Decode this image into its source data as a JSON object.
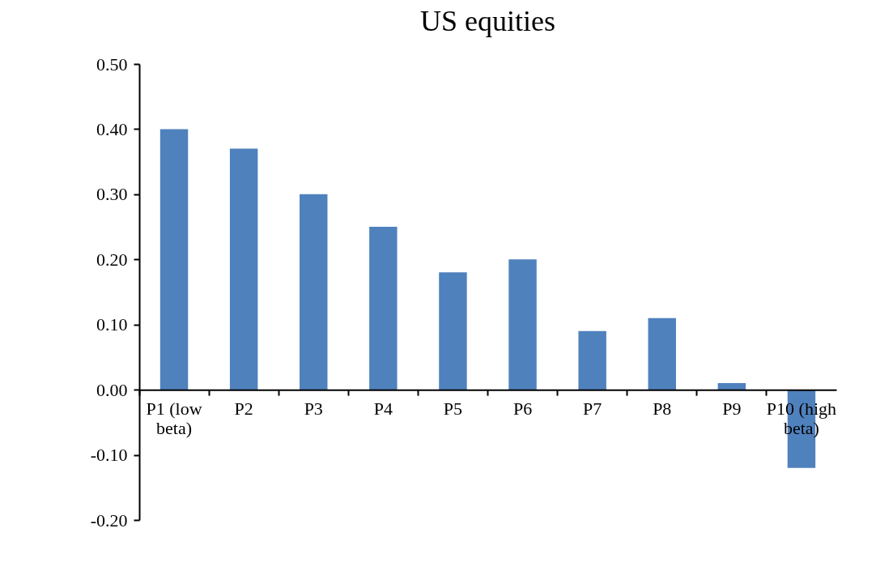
{
  "chart_data": {
    "type": "bar",
    "title": "US equities",
    "categories": [
      "P1 (low beta)",
      "P2",
      "P3",
      "P4",
      "P5",
      "P6",
      "P7",
      "P8",
      "P9",
      "P10 (high beta)"
    ],
    "values": [
      0.4,
      0.37,
      0.3,
      0.25,
      0.18,
      0.2,
      0.09,
      0.11,
      0.01,
      -0.12
    ],
    "color": "#4f81bd",
    "ylim": [
      -0.2,
      0.5
    ],
    "yticks": [
      {
        "value": -0.2,
        "label": "-0.20"
      },
      {
        "value": -0.1,
        "label": "-0.10"
      },
      {
        "value": 0,
        "label": "0.00"
      },
      {
        "value": 0.1,
        "label": "0.10"
      },
      {
        "value": 0.2,
        "label": "0.20"
      },
      {
        "value": 0.3,
        "label": "0.30"
      },
      {
        "value": 0.4,
        "label": "0.40"
      },
      {
        "value": 0.5,
        "label": "0.50"
      }
    ],
    "grid": false
  }
}
